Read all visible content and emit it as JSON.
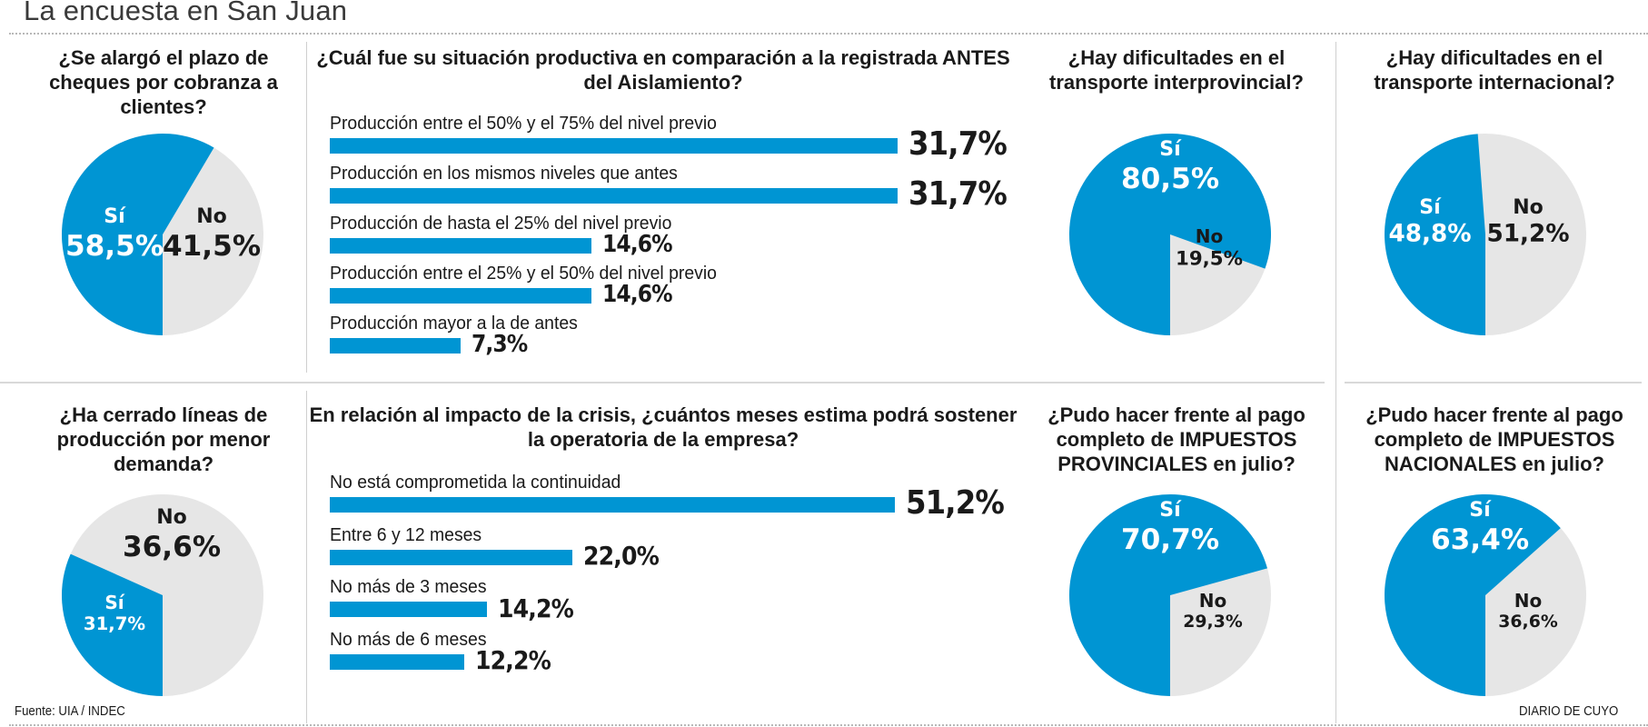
{
  "header": {
    "title": "La encuesta en San Juan"
  },
  "colors": {
    "yes": "#0095d3",
    "no": "#e6e6e6",
    "text_dark": "#1a1a1a",
    "text_light": "#ffffff"
  },
  "footer": {
    "source": "Fuente: UIA / INDEC",
    "brand": "DIARIO DE CUYO"
  },
  "chart_data": [
    {
      "id": "cheques",
      "type": "pie",
      "title": "¿Se alargó el plazo de cheques por cobranza a clientes?",
      "slices": [
        {
          "label": "Sí",
          "value": 58.5,
          "display": "58,5%"
        },
        {
          "label": "No",
          "value": 41.5,
          "display": "41,5%"
        }
      ]
    },
    {
      "id": "situacion",
      "type": "bar",
      "orientation": "horizontal",
      "title": "¿Cuál fue su situación productiva en comparación a la registrada ANTES del Aislamiento?",
      "categories": [
        "Producción entre el 50% y el 75% del nivel previo",
        "Producción en los mismos niveles que antes",
        "Producción de hasta el 25% del nivel previo",
        "Producción entre el 25% y el 50% del nivel previo",
        "Producción mayor a la de antes"
      ],
      "values": [
        31.7,
        31.7,
        14.6,
        14.6,
        7.3
      ],
      "labels": [
        "31,7%",
        "31,7%",
        "14,6%",
        "14,6%",
        "7,3%"
      ],
      "unit": "%"
    },
    {
      "id": "interprovincial",
      "type": "pie",
      "title": "¿Hay dificultades en el transporte interprovincial?",
      "slices": [
        {
          "label": "Sí",
          "value": 80.5,
          "display": "80,5%"
        },
        {
          "label": "No",
          "value": 19.5,
          "display": "19,5%"
        }
      ]
    },
    {
      "id": "internacional",
      "type": "pie",
      "title": "¿Hay dificultades en el transporte internacional?",
      "slices": [
        {
          "label": "Sí",
          "value": 48.8,
          "display": "48,8%"
        },
        {
          "label": "No",
          "value": 51.2,
          "display": "51,2%"
        }
      ]
    },
    {
      "id": "lineas",
      "type": "pie",
      "title": "¿Ha cerrado líneas de producción por menor demanda?",
      "slices": [
        {
          "label": "Sí",
          "value": 31.7,
          "display": "31,7%"
        },
        {
          "label": "No",
          "value": 36.6,
          "display": "36,6%"
        }
      ],
      "note": "gray slice fills remainder of circle"
    },
    {
      "id": "meses",
      "type": "bar",
      "orientation": "horizontal",
      "title": "En relación al impacto de la crisis, ¿cuántos meses estima podrá sostener la operatoria de la empresa?",
      "categories": [
        "No está comprometida la continuidad",
        "Entre 6 y 12 meses",
        "No más de 3 meses",
        "No más de 6 meses"
      ],
      "values": [
        51.2,
        22.0,
        14.2,
        12.2
      ],
      "labels": [
        "51,2%",
        "22,0%",
        "14,2%",
        "12,2%"
      ],
      "unit": "%"
    },
    {
      "id": "provinciales",
      "type": "pie",
      "title": "¿Pudo hacer frente al pago completo de IMPUESTOS PROVINCIALES en julio?",
      "slices": [
        {
          "label": "Sí",
          "value": 70.7,
          "display": "70,7%"
        },
        {
          "label": "No",
          "value": 29.3,
          "display": "29,3%"
        }
      ]
    },
    {
      "id": "nacionales",
      "type": "pie",
      "title": "¿Pudo hacer frente al pago completo de IMPUESTOS NACIONALES en julio?",
      "slices": [
        {
          "label": "Sí",
          "value": 63.4,
          "display": "63,4%"
        },
        {
          "label": "No",
          "value": 36.6,
          "display": "36,6%"
        }
      ]
    }
  ]
}
